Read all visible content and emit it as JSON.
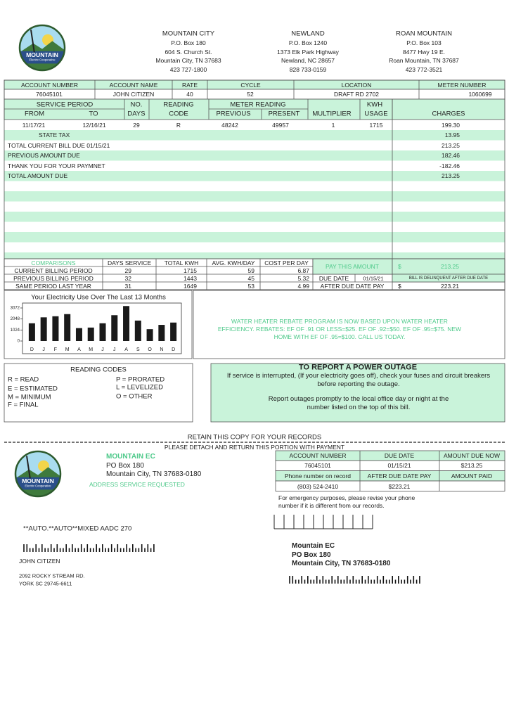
{
  "logo": {
    "name": "MOUNTAIN",
    "tagline": "Electric Cooperative"
  },
  "offices": [
    {
      "name": "MOUNTAIN CITY",
      "lines": [
        "P.O. Box 180",
        "604 S. Church St.",
        "Mountain City, TN 37683",
        "423 727-1800"
      ]
    },
    {
      "name": "NEWLAND",
      "lines": [
        "P.O. Box 1240",
        "1373 Elk Park Highway",
        "Newland, NC 28657",
        "828 733-0159"
      ]
    },
    {
      "name": "ROAN MOUNTAIN",
      "lines": [
        "P.O. Box 103",
        "8477 Hwy 19 E.",
        "Roan Mountain, TN 37687",
        "423 772-3521"
      ]
    }
  ],
  "account": {
    "headers": [
      "ACCOUNT NUMBER",
      "ACCOUNT NAME",
      "RATE",
      "CYCLE",
      "LOCATION",
      "METER NUMBER"
    ],
    "values": [
      76045101,
      "JOHN CITIZEN",
      40,
      52,
      "DRAFT RD 2702",
      1060699
    ]
  },
  "usage": {
    "group_headers": [
      "SERVICE PERIOD",
      "NO.",
      "READING",
      "METER READING",
      "KWH"
    ],
    "headers": [
      "FROM",
      "TO",
      "DAYS",
      "CODE",
      "PREVIOUS",
      "PRESENT",
      "MULTIPLIER",
      "USAGE",
      "CHARGES"
    ],
    "row": [
      "11/17/21",
      "12/16/21",
      29,
      "R",
      48242,
      49957,
      1,
      1715,
      "199.30"
    ]
  },
  "charges": [
    {
      "label": "STATE TAX",
      "amount": 13.95
    },
    {
      "label": "TOTAL CURRENT BILL DUE 01/15/21",
      "amount": 213.25
    },
    {
      "label": "PREVIOUS AMOUNT DUE",
      "amount": 182.46
    },
    {
      "label": "THANK YOU FOR YOUR PAYMNET",
      "amount": -182.46
    },
    {
      "label": "TOTAL AMOUNT DUE",
      "amount": 213.25
    }
  ],
  "comparisons": {
    "title": "COMPARISONS",
    "headers": [
      "DAYS SERVICE",
      "TOTAL KWH",
      "AVG. KWH/DAY",
      "COST PER DAY"
    ],
    "rows": [
      {
        "label": "CURRENT BILLING PERIOD",
        "values": [
          29,
          1715,
          59,
          6.87
        ]
      },
      {
        "label": "PREVIOUS BILLING PERIOD",
        "values": [
          32,
          1443,
          45,
          5.32
        ]
      },
      {
        "label": "SAME PERIOD LAST YEAR",
        "values": [
          31,
          1649,
          53,
          4.99
        ]
      }
    ]
  },
  "payment": {
    "pay_label": "PAY THIS AMOUNT",
    "pay_currency": "$",
    "pay_amount": 213.25,
    "due_label": "DUE DATE",
    "due_date": "01/15/21",
    "delinquent": "BILL IS DELINQUENT AFTER DUE DATE",
    "after_label": "AFTER DUE DATE PAY",
    "after_currency": "$",
    "after_amount": 223.21
  },
  "usage_chart": {
    "type": "bar",
    "title": "Your Electricity Use Over The Last 13 Months",
    "categories": [
      "D",
      "J",
      "F",
      "M",
      "A",
      "M",
      "J",
      "J",
      "A",
      "S",
      "O",
      "N",
      "D"
    ],
    "values": [
      1650,
      2200,
      2300,
      2500,
      1200,
      1250,
      1650,
      2400,
      3250,
      1900,
      1100,
      1500,
      1715
    ],
    "ylim": [
      0,
      3300
    ],
    "yticks": [
      0,
      1024,
      2048,
      3072
    ],
    "color": "#1a1a1a"
  },
  "rebate": "WATER HEATER REBATE PROGRAM IS NOW BASED UPON  WATER HEATER EFFICIENCY. REBATES: EF OF .91 OR LESS=$25. EF OF .92=$50. EF OF .95=$75. NEW HOME WITH EF OF .95=$100. CALL US TODAY.",
  "reading_codes": {
    "title": "READING CODES",
    "codes": [
      "R = READ",
      "E = ESTIMATED",
      "M = MINIMUM",
      "F = FINAL",
      "P = PRORATED",
      "L = LEVELIZED",
      "O = OTHER"
    ]
  },
  "outage": {
    "title": "TO REPORT A POWER OUTAGE",
    "paragraphs": [
      "If service is interrupted, (If your electricity goes off), check your fuses and circuit breakers before reporting the outage.",
      "Report outages promptly to the local office day or night at the number listed on the top of this bill."
    ]
  },
  "retain": "RETAIN THIS COPY FOR YOUR RECORDS",
  "detach": "PLEASE DETACH AND RETURN THIS PORTION WITH PAYMENT",
  "stub": {
    "company": [
      "MOUNTAIN EC",
      "PO Box 180",
      "Mountain City, TN 37683-0180"
    ],
    "address_service": "ADDRESS SERVICE REQUESTED",
    "mail_code": "**AUTO.**AUTO**MIXED AADC 270",
    "customer": [
      "JOHN CITIZEN",
      "2092 ROCKY STREAM RD.",
      "YORK SC 29745-6611"
    ],
    "table": {
      "headers": [
        "ACCOUNT NUMBER",
        "DUE DATE",
        "AMOUNT DUE NOW"
      ],
      "row": [
        76045101,
        "01/15/21",
        "$213.25"
      ],
      "headers2": [
        "Phone number on record",
        "AFTER DUE DATE PAY",
        "AMOUNT PAID"
      ],
      "row2": [
        "(803) 524-2410",
        "$223.21"
      ]
    },
    "emergency": "For emergency purposes, please revise your phone number if it is different from our records.",
    "remit": [
      "Mountain EC",
      "PO Box 180",
      "Mountain City, TN 37683-0180"
    ]
  }
}
